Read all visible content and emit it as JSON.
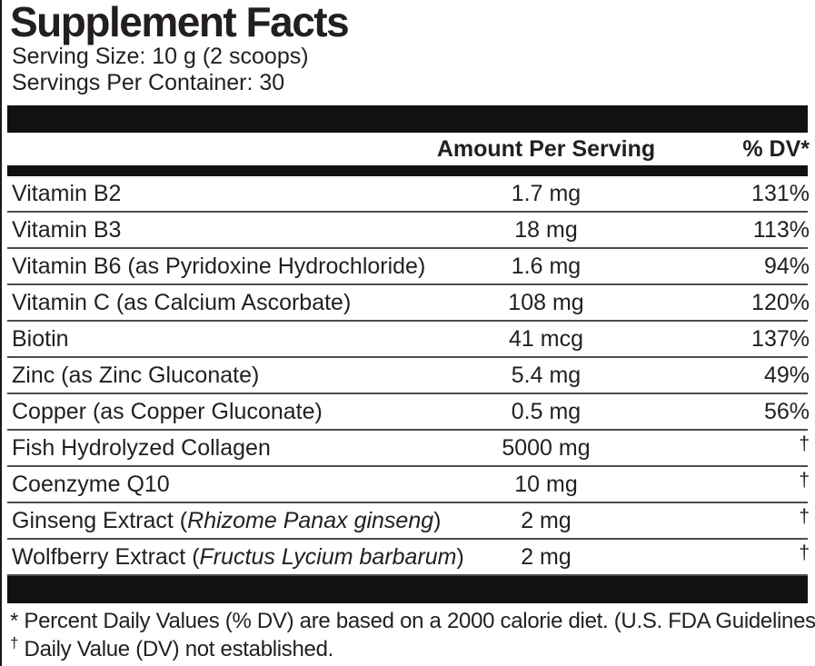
{
  "label": {
    "title": "Supplement Facts",
    "serving_size": "Serving Size: 10 g (2 scoops)",
    "servings_per_container": "Servings Per Container: 30"
  },
  "table": {
    "headers": {
      "amount": "Amount Per Serving",
      "dv": "% DV*"
    },
    "rows": [
      {
        "name_pre": "Vitamin B2",
        "name_italic": "",
        "name_post": "",
        "amount": "1.7 mg",
        "dv": "131%"
      },
      {
        "name_pre": "Vitamin B3",
        "name_italic": "",
        "name_post": "",
        "amount": "18 mg",
        "dv": "113%"
      },
      {
        "name_pre": "Vitamin B6 (as Pyridoxine Hydrochloride)",
        "name_italic": "",
        "name_post": "",
        "amount": "1.6 mg",
        "dv": "94%"
      },
      {
        "name_pre": "Vitamin C (as Calcium Ascorbate)",
        "name_italic": "",
        "name_post": "",
        "amount": "108 mg",
        "dv": "120%"
      },
      {
        "name_pre": "Biotin",
        "name_italic": "",
        "name_post": "",
        "amount": "41 mcg",
        "dv": "137%"
      },
      {
        "name_pre": "Zinc (as Zinc Gluconate)",
        "name_italic": "",
        "name_post": "",
        "amount": "5.4 mg",
        "dv": "49%"
      },
      {
        "name_pre": "Copper (as Copper Gluconate)",
        "name_italic": "",
        "name_post": "",
        "amount": "0.5 mg",
        "dv": "56%"
      },
      {
        "name_pre": "Fish Hydrolyzed Collagen",
        "name_italic": "",
        "name_post": "",
        "amount": "5000 mg",
        "dv": "†"
      },
      {
        "name_pre": "Coenzyme Q10",
        "name_italic": "",
        "name_post": "",
        "amount": "10 mg",
        "dv": "†"
      },
      {
        "name_pre": "Ginseng Extract (",
        "name_italic": "Rhizome Panax ginseng",
        "name_post": ")",
        "amount": "2 mg",
        "dv": "†"
      },
      {
        "name_pre": "Wolfberry Extract (",
        "name_italic": "Fructus Lycium barbarum",
        "name_post": ")",
        "amount": "2 mg",
        "dv": "†"
      }
    ]
  },
  "footnotes": [
    {
      "marker": "*",
      "text": "Percent Daily Values (% DV) are based on a 2000 calorie diet. (U.S. FDA Guidelines)."
    },
    {
      "marker": "†",
      "text": "Daily Value (DV) not established."
    }
  ],
  "colors": {
    "bar_black": "#111111",
    "text_black": "#231f20",
    "row_separator": "#4d4d4d"
  }
}
